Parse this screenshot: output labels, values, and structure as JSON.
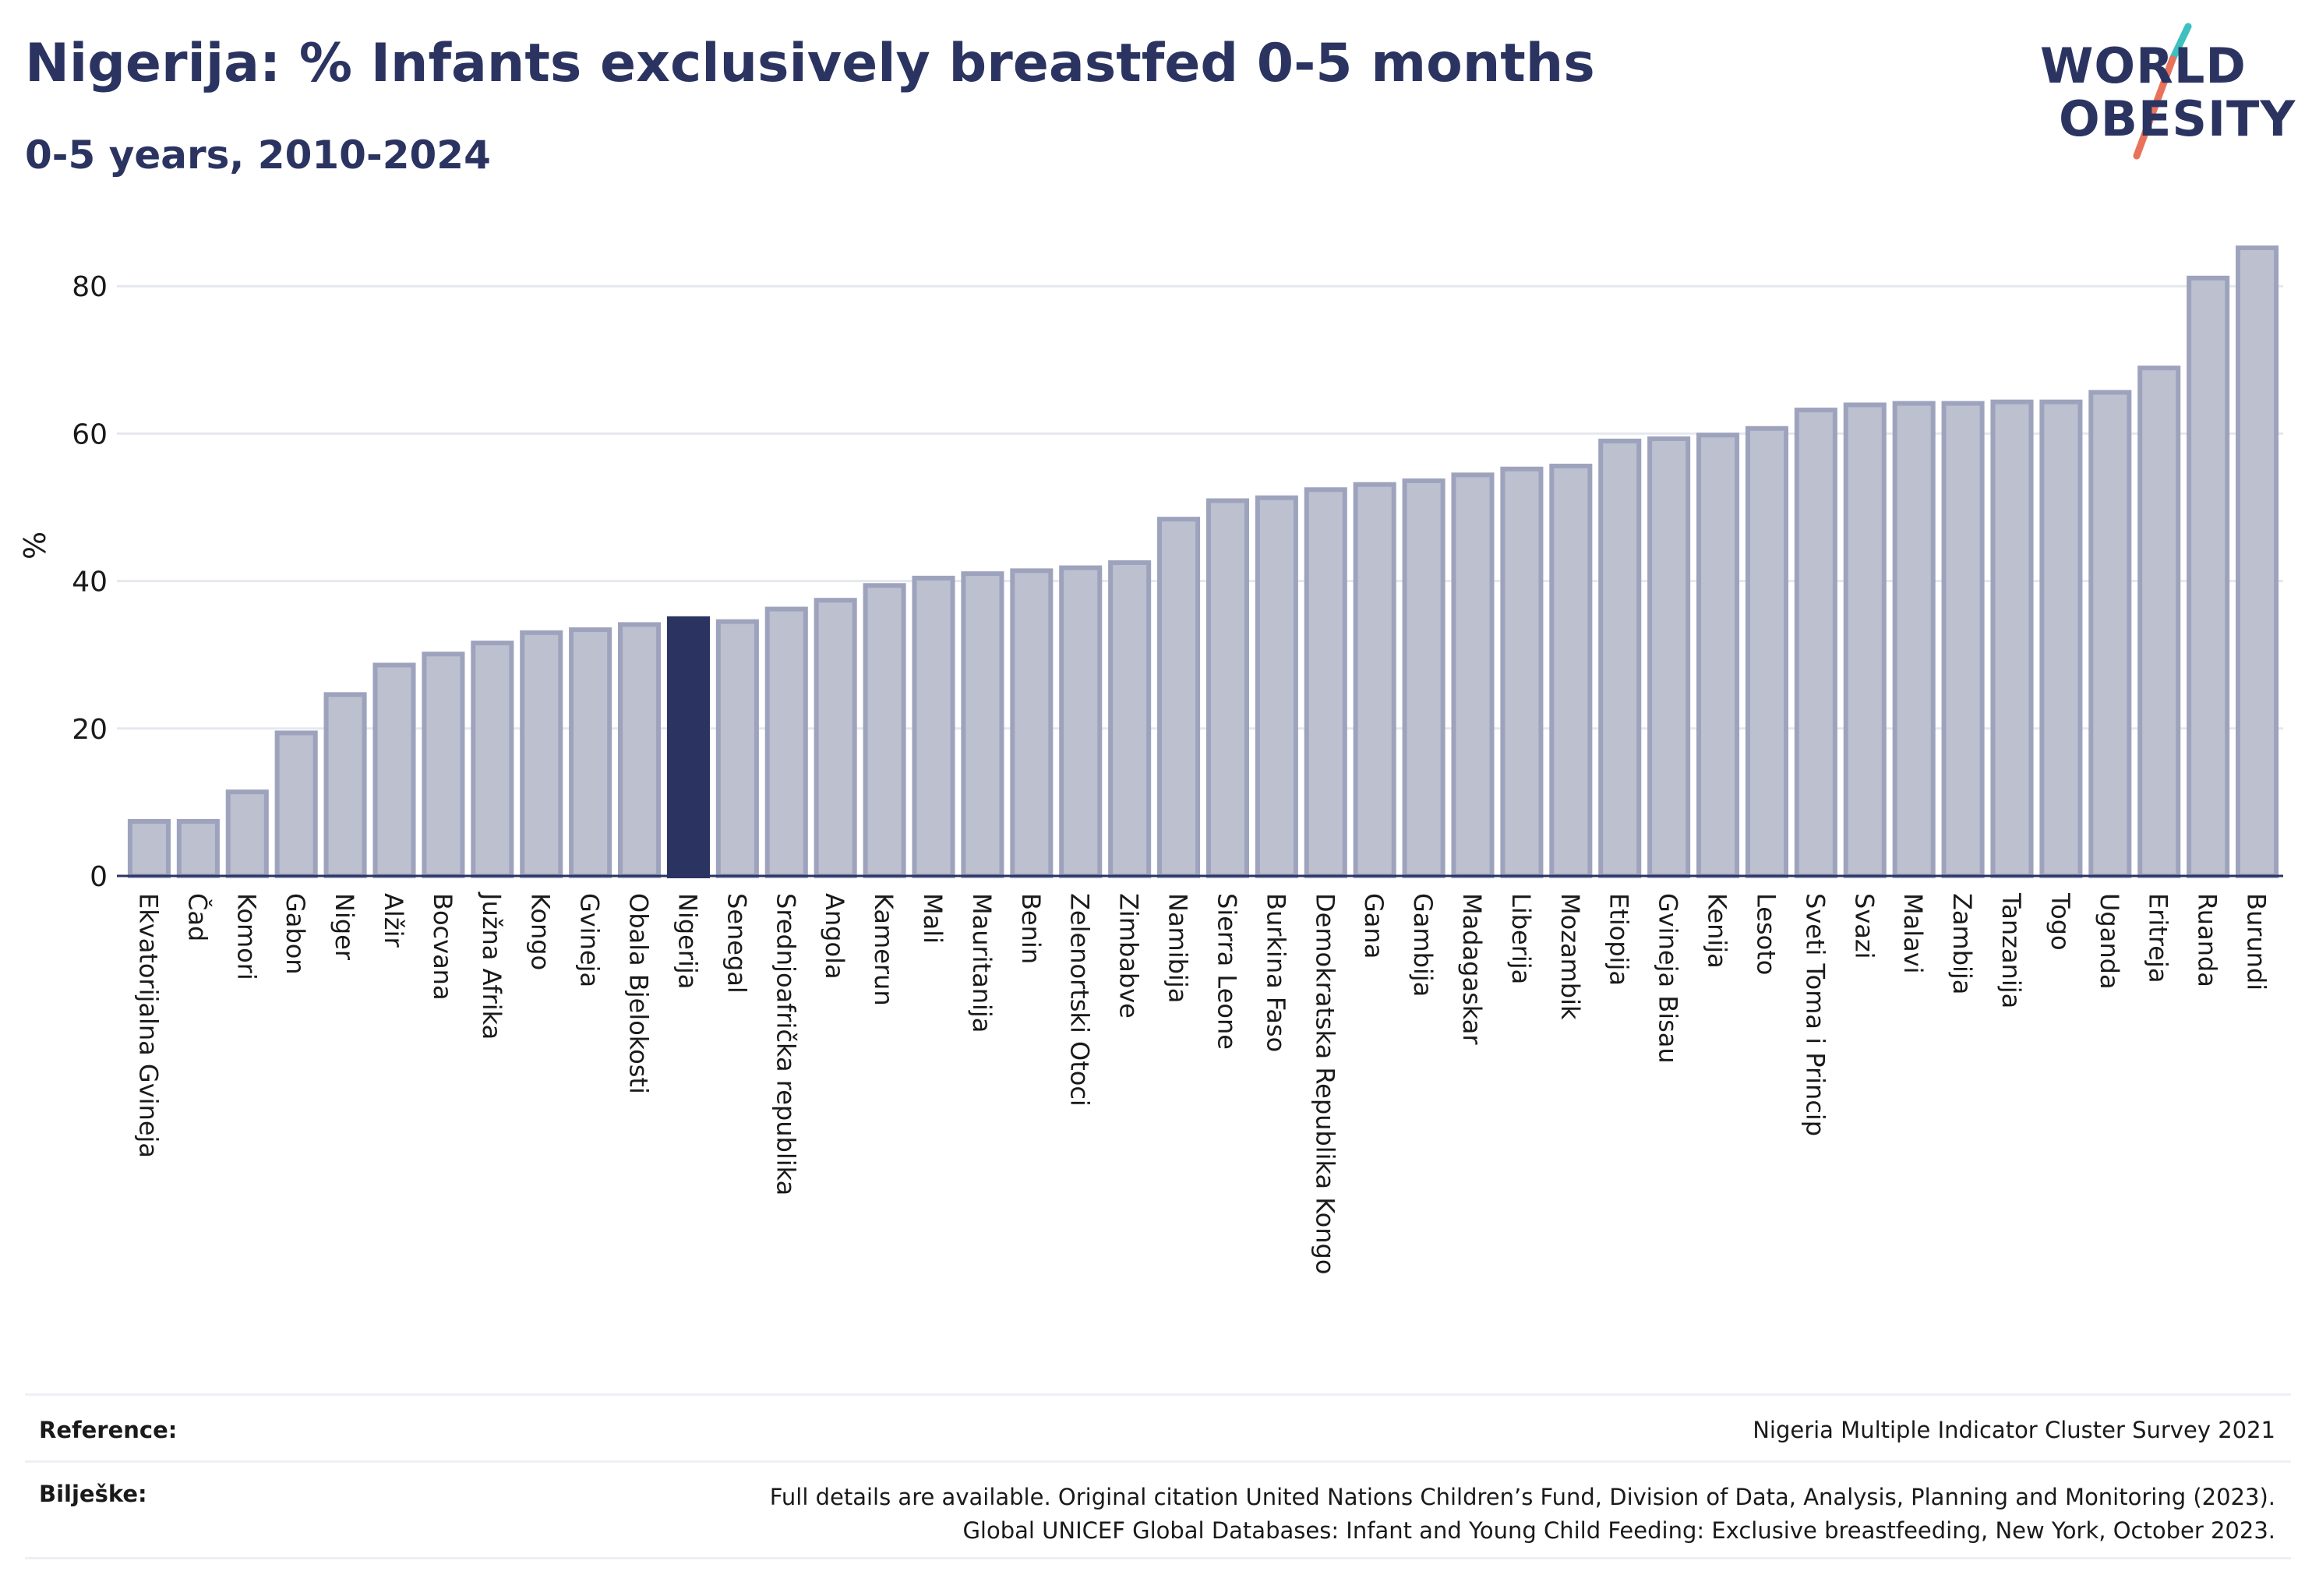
{
  "header": {
    "title": "Nigerija: % Infants exclusively breastfed 0-5 months",
    "subtitle": "0-5 years, 2010-2024"
  },
  "logo": {
    "line1": "WORLD",
    "line2": "OBESITY"
  },
  "colors": {
    "bar": "#bcc0cf",
    "bar_border": "#9ea3bd",
    "highlight": "#2b3461",
    "grid": "#e6e8ef",
    "text": "#2b3461",
    "logo_teal": "#3fbfbf",
    "logo_coral": "#e8735a"
  },
  "chart_data": {
    "type": "bar",
    "ylabel": "%",
    "ylim": [
      0,
      90
    ],
    "yticks": [
      0,
      20,
      40,
      60,
      80
    ],
    "grid": true,
    "highlight": "Nigerija",
    "categories": [
      "Ekvatorijalna Gvineja",
      "Čad",
      "Komori",
      "Gabon",
      "Niger",
      "Alžir",
      "Bocvana",
      "Južna Afrika",
      "Kongo",
      "Gvineja",
      "Obala Bjelokosti",
      "Nigerija",
      "Senegal",
      "Srednjoafrička republika",
      "Angola",
      "Kamerun",
      "Mali",
      "Mauritanija",
      "Benin",
      "Zelenortski Otoci",
      "Zimbabve",
      "Namibija",
      "Sierra Leone",
      "Burkina Faso",
      "Demokratska Republika Kongo",
      "Gana",
      "Gambija",
      "Madagaskar",
      "Liberija",
      "Mozambik",
      "Etiopija",
      "Gvineja Bisau",
      "Kenija",
      "Lesoto",
      "Sveti Toma i Princip",
      "Svazi",
      "Malavi",
      "Zambija",
      "Tanzanija",
      "Togo",
      "Uganda",
      "Eritreja",
      "Ruanda",
      "Burundi"
    ],
    "values": [
      7.4,
      7.4,
      11.4,
      19.4,
      24.6,
      28.6,
      30.1,
      31.6,
      33.0,
      33.4,
      34.1,
      34.9,
      34.5,
      36.2,
      37.4,
      39.4,
      40.4,
      41.0,
      41.4,
      41.8,
      42.5,
      48.4,
      50.9,
      51.3,
      52.4,
      53.1,
      53.6,
      54.4,
      55.2,
      55.6,
      59.0,
      59.3,
      59.8,
      60.7,
      63.2,
      63.9,
      64.1,
      64.1,
      64.3,
      64.3,
      65.6,
      68.9,
      81.1,
      85.2
    ]
  },
  "footer": {
    "reference_label": "Reference:",
    "reference_value": "Nigeria Multiple Indicator Cluster Survey 2021",
    "notes_label": "Bilješke:",
    "notes_line1": "Full details are available. Original citation United Nations Children’s Fund, Division of Data, Analysis, Planning and Monitoring (2023).",
    "notes_line2": "Global UNICEF Global Databases: Infant and Young Child Feeding: Exclusive breastfeeding, New York, October 2023."
  }
}
